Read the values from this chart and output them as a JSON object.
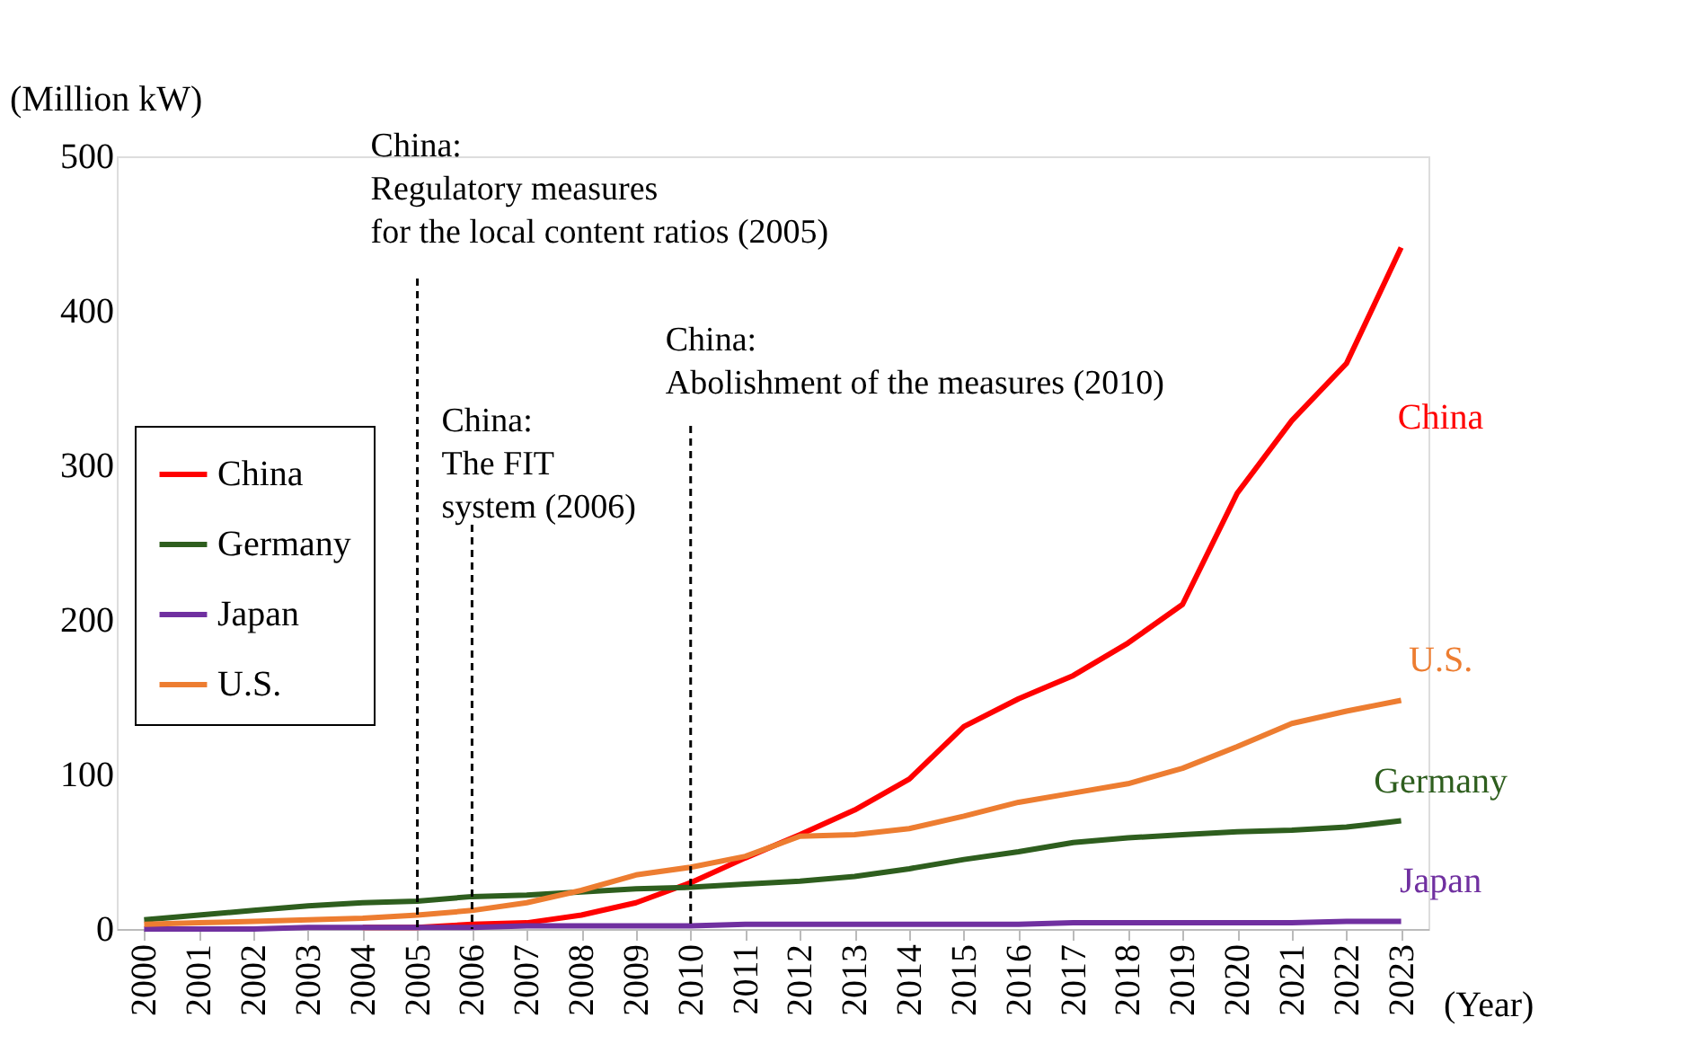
{
  "chart_data": {
    "type": "line",
    "ylabel": "(Million kW)",
    "xlabel": "(Year)",
    "categories": [
      "2000",
      "2001",
      "2002",
      "2003",
      "2004",
      "2005",
      "2006",
      "2007",
      "2008",
      "2009",
      "2010",
      "2011",
      "2012",
      "2013",
      "2014",
      "2015",
      "2016",
      "2017",
      "2018",
      "2019",
      "2020",
      "2021",
      "2022",
      "2023"
    ],
    "series": [
      {
        "name": "China",
        "color": "#ff0000",
        "values": [
          null,
          null,
          null,
          null,
          1,
          1,
          3,
          4,
          9,
          17,
          30,
          46,
          61,
          77,
          97,
          131,
          149,
          164,
          185,
          210,
          282,
          329,
          366,
          441
        ]
      },
      {
        "name": "Germany",
        "color": "#2e5e1e",
        "values": [
          6,
          9,
          12,
          15,
          17,
          18,
          21,
          22,
          24,
          26,
          27,
          29,
          31,
          34,
          39,
          45,
          50,
          56,
          59,
          61,
          63,
          64,
          66,
          70
        ]
      },
      {
        "name": "Japan",
        "color": "#7030a0",
        "values": [
          0,
          0,
          0,
          1,
          1,
          1,
          1,
          2,
          2,
          2,
          2,
          3,
          3,
          3,
          3,
          3,
          3,
          4,
          4,
          4,
          4,
          4,
          5,
          5
        ]
      },
      {
        "name": "U.S.",
        "color": "#ed7d31",
        "values": [
          3,
          4,
          5,
          6,
          7,
          9,
          12,
          17,
          25,
          35,
          40,
          47,
          60,
          61,
          65,
          73,
          82,
          88,
          94,
          104,
          118,
          133,
          141,
          148
        ]
      }
    ],
    "ylim": [
      0,
      500
    ],
    "yticks": [
      0,
      100,
      200,
      300,
      400,
      500
    ],
    "grid": false,
    "legend": "left",
    "marker": "none",
    "line_style": "solid",
    "ref_lines": [
      {
        "axis": "x",
        "value": "2005",
        "label": "China:\nRegulatory measures\nfor the local content ratios (2005)",
        "color": "#000000",
        "line_style": "dashed"
      },
      {
        "axis": "x",
        "value": "2006",
        "label": "China:\nThe FIT\nsystem (2006)",
        "color": "#000000",
        "line_style": "dashed"
      },
      {
        "axis": "x",
        "value": "2010",
        "label": "China:\nAbolishment of the measures (2010)",
        "color": "#000000",
        "line_style": "dashed"
      }
    ]
  }
}
